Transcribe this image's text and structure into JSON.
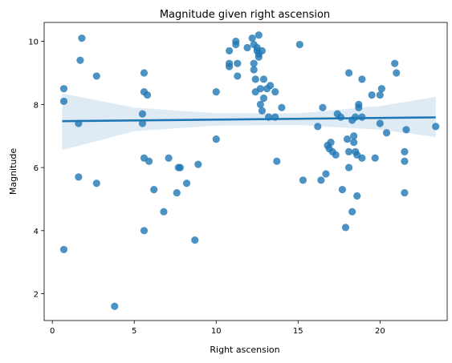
{
  "chart_data": {
    "type": "scatter",
    "title": "Magnitude given right ascension",
    "xlabel": "Right ascension",
    "ylabel": "Magnitude",
    "xlim": [
      -0.5,
      24.1
    ],
    "ylim": [
      1.15,
      10.6
    ],
    "xticks": [
      0,
      5,
      10,
      15,
      20
    ],
    "yticks": [
      2,
      4,
      6,
      8,
      10
    ],
    "grid": false,
    "legend": "none",
    "point_color": "#1f77b4",
    "points": [
      [
        0.7,
        8.5
      ],
      [
        0.7,
        8.1
      ],
      [
        0.7,
        3.4
      ],
      [
        1.6,
        7.4
      ],
      [
        1.6,
        5.7
      ],
      [
        1.7,
        9.4
      ],
      [
        1.8,
        10.1
      ],
      [
        2.7,
        8.9
      ],
      [
        2.7,
        5.5
      ],
      [
        3.8,
        1.6
      ],
      [
        5.5,
        7.7
      ],
      [
        5.5,
        7.4
      ],
      [
        5.6,
        8.4
      ],
      [
        5.6,
        9.0
      ],
      [
        5.6,
        6.3
      ],
      [
        5.6,
        4.0
      ],
      [
        5.8,
        8.3
      ],
      [
        5.9,
        6.2
      ],
      [
        6.2,
        5.3
      ],
      [
        6.8,
        4.6
      ],
      [
        7.1,
        6.3
      ],
      [
        7.6,
        5.2
      ],
      [
        7.7,
        6.0
      ],
      [
        7.8,
        6.0
      ],
      [
        8.2,
        5.5
      ],
      [
        8.7,
        3.7
      ],
      [
        8.9,
        6.1
      ],
      [
        10.0,
        8.4
      ],
      [
        10.0,
        6.9
      ],
      [
        10.8,
        9.7
      ],
      [
        10.8,
        9.3
      ],
      [
        10.8,
        9.2
      ],
      [
        11.2,
        10.0
      ],
      [
        11.2,
        9.9
      ],
      [
        11.3,
        9.3
      ],
      [
        11.3,
        8.9
      ],
      [
        11.9,
        9.8
      ],
      [
        12.2,
        10.1
      ],
      [
        12.3,
        9.9
      ],
      [
        12.3,
        9.3
      ],
      [
        12.3,
        9.1
      ],
      [
        12.4,
        8.8
      ],
      [
        12.4,
        8.4
      ],
      [
        12.5,
        9.8
      ],
      [
        12.5,
        9.7
      ],
      [
        12.6,
        10.2
      ],
      [
        12.6,
        9.6
      ],
      [
        12.6,
        9.5
      ],
      [
        12.7,
        8.5
      ],
      [
        12.7,
        8.0
      ],
      [
        12.8,
        7.8
      ],
      [
        12.8,
        9.7
      ],
      [
        12.9,
        8.8
      ],
      [
        12.9,
        8.2
      ],
      [
        13.1,
        8.5
      ],
      [
        13.2,
        7.6
      ],
      [
        13.3,
        8.6
      ],
      [
        13.6,
        8.4
      ],
      [
        13.6,
        7.6
      ],
      [
        13.7,
        6.2
      ],
      [
        14.0,
        7.9
      ],
      [
        15.1,
        9.9
      ],
      [
        15.3,
        5.6
      ],
      [
        16.2,
        7.3
      ],
      [
        16.4,
        5.6
      ],
      [
        16.5,
        7.9
      ],
      [
        16.7,
        5.8
      ],
      [
        16.8,
        6.7
      ],
      [
        16.9,
        6.6
      ],
      [
        17.0,
        6.8
      ],
      [
        17.1,
        6.5
      ],
      [
        17.3,
        6.4
      ],
      [
        17.4,
        7.7
      ],
      [
        17.6,
        7.6
      ],
      [
        17.7,
        5.3
      ],
      [
        17.9,
        4.1
      ],
      [
        18.0,
        6.9
      ],
      [
        18.1,
        9.0
      ],
      [
        18.1,
        6.5
      ],
      [
        18.1,
        6.0
      ],
      [
        18.3,
        7.5
      ],
      [
        18.3,
        4.6
      ],
      [
        18.4,
        7.0
      ],
      [
        18.4,
        6.8
      ],
      [
        18.5,
        7.6
      ],
      [
        18.5,
        6.5
      ],
      [
        18.6,
        6.4
      ],
      [
        18.6,
        5.1
      ],
      [
        18.7,
        8.0
      ],
      [
        18.7,
        7.9
      ],
      [
        18.9,
        8.8
      ],
      [
        18.9,
        7.6
      ],
      [
        18.9,
        6.3
      ],
      [
        19.5,
        8.3
      ],
      [
        19.7,
        6.3
      ],
      [
        20.0,
        8.3
      ],
      [
        20.0,
        7.4
      ],
      [
        20.1,
        8.5
      ],
      [
        20.4,
        7.1
      ],
      [
        20.9,
        9.3
      ],
      [
        21.0,
        9.0
      ],
      [
        21.5,
        6.5
      ],
      [
        21.5,
        6.2
      ],
      [
        21.5,
        5.2
      ],
      [
        21.6,
        7.2
      ],
      [
        23.4,
        7.3
      ]
    ],
    "regression": {
      "x_range": [
        0.6,
        23.4
      ],
      "line": [
        [
          0.6,
          7.47
        ],
        [
          23.4,
          7.59
        ]
      ],
      "ci_upper": [
        [
          0.6,
          8.35
        ],
        [
          5.0,
          7.9
        ],
        [
          10.0,
          7.72
        ],
        [
          15.0,
          7.72
        ],
        [
          20.0,
          7.95
        ],
        [
          23.4,
          8.24
        ]
      ],
      "ci_lower": [
        [
          0.6,
          6.55
        ],
        [
          5.0,
          7.15
        ],
        [
          10.0,
          7.33
        ],
        [
          15.0,
          7.35
        ],
        [
          20.0,
          7.2
        ],
        [
          23.4,
          6.97
        ]
      ]
    }
  }
}
